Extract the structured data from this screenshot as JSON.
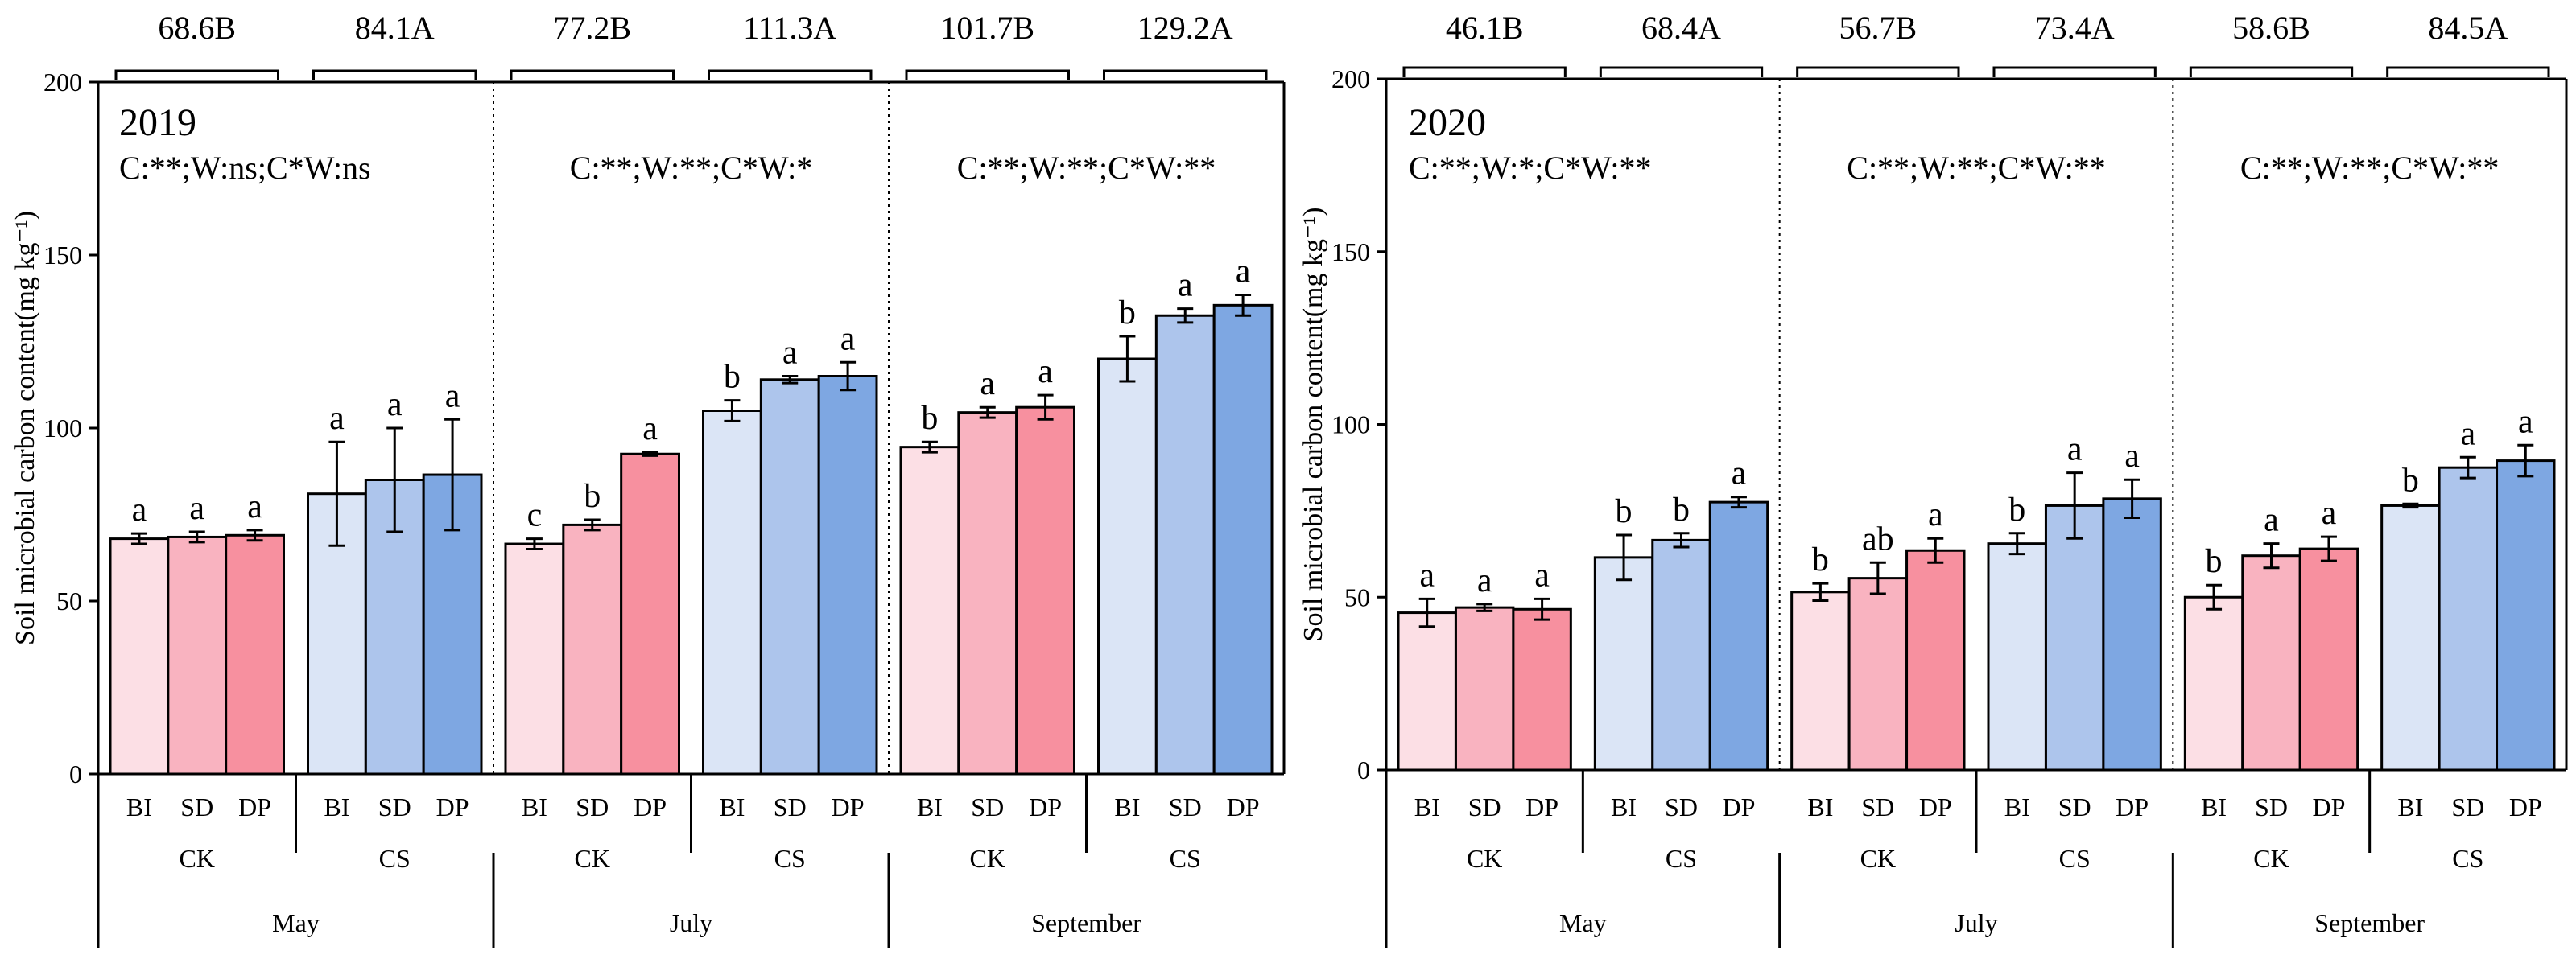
{
  "chart_data": [
    {
      "type": "bar",
      "year_label": "2019",
      "ylabel": "Soil microbial carbon content(mg kg⁻¹)",
      "ylim": [
        0,
        200
      ],
      "yticks": [
        0,
        50,
        100,
        150,
        200
      ],
      "groups": [
        {
          "month": "May",
          "stats": "C:**;W:ns;C*W:ns",
          "subgroups": [
            {
              "name": "CK",
              "mean_label": "68.6B",
              "bars": [
                {
                  "treatment": "BI",
                  "value": 68,
                  "error": 1.5,
                  "letter": "a"
                },
                {
                  "treatment": "SD",
                  "value": 68.5,
                  "error": 1.5,
                  "letter": "a"
                },
                {
                  "treatment": "DP",
                  "value": 69,
                  "error": 1.5,
                  "letter": "a"
                }
              ]
            },
            {
              "name": "CS",
              "mean_label": "84.1A",
              "bars": [
                {
                  "treatment": "BI",
                  "value": 81,
                  "error": 15,
                  "letter": "a"
                },
                {
                  "treatment": "SD",
                  "value": 85,
                  "error": 15,
                  "letter": "a"
                },
                {
                  "treatment": "DP",
                  "value": 86.5,
                  "error": 16,
                  "letter": "a"
                }
              ]
            }
          ]
        },
        {
          "month": "July",
          "stats": "C:**;W:**;C*W:*",
          "subgroups": [
            {
              "name": "CK",
              "mean_label": "77.2B",
              "bars": [
                {
                  "treatment": "BI",
                  "value": 66.5,
                  "error": 1.5,
                  "letter": "c"
                },
                {
                  "treatment": "SD",
                  "value": 72,
                  "error": 1.5,
                  "letter": "b"
                },
                {
                  "treatment": "DP",
                  "value": 92.5,
                  "error": 0.5,
                  "letter": "a"
                }
              ]
            },
            {
              "name": "CS",
              "mean_label": "111.3A",
              "bars": [
                {
                  "treatment": "BI",
                  "value": 105,
                  "error": 3,
                  "letter": "b"
                },
                {
                  "treatment": "SD",
                  "value": 114,
                  "error": 1,
                  "letter": "a"
                },
                {
                  "treatment": "DP",
                  "value": 115,
                  "error": 4,
                  "letter": "a"
                }
              ]
            }
          ]
        },
        {
          "month": "September",
          "stats": "C:**;W:**;C*W:**",
          "subgroups": [
            {
              "name": "CK",
              "mean_label": "101.7B",
              "bars": [
                {
                  "treatment": "BI",
                  "value": 94.5,
                  "error": 1.5,
                  "letter": "b"
                },
                {
                  "treatment": "SD",
                  "value": 104.5,
                  "error": 1.5,
                  "letter": "a"
                },
                {
                  "treatment": "DP",
                  "value": 106,
                  "error": 3.5,
                  "letter": "a"
                }
              ]
            },
            {
              "name": "CS",
              "mean_label": "129.2A",
              "bars": [
                {
                  "treatment": "BI",
                  "value": 120,
                  "error": 6.5,
                  "letter": "b"
                },
                {
                  "treatment": "SD",
                  "value": 132.5,
                  "error": 2,
                  "letter": "a"
                },
                {
                  "treatment": "DP",
                  "value": 135.5,
                  "error": 3,
                  "letter": "a"
                }
              ]
            }
          ]
        }
      ]
    },
    {
      "type": "bar",
      "year_label": "2020",
      "ylabel": "Soil microbial carbon content(mg kg⁻¹)",
      "ylim": [
        0,
        200
      ],
      "yticks": [
        0,
        50,
        100,
        150,
        200
      ],
      "groups": [
        {
          "month": "May",
          "stats": "C:**;W:*;C*W:**",
          "subgroups": [
            {
              "name": "CK",
              "mean_label": "46.1B",
              "bars": [
                {
                  "treatment": "BI",
                  "value": 45.5,
                  "error": 4,
                  "letter": "a"
                },
                {
                  "treatment": "SD",
                  "value": 47,
                  "error": 1,
                  "letter": "a"
                },
                {
                  "treatment": "DP",
                  "value": 46.5,
                  "error": 3,
                  "letter": "a"
                }
              ]
            },
            {
              "name": "CS",
              "mean_label": "68.4A",
              "bars": [
                {
                  "treatment": "BI",
                  "value": 61.5,
                  "error": 6.5,
                  "letter": "b"
                },
                {
                  "treatment": "SD",
                  "value": 66.5,
                  "error": 2,
                  "letter": "b"
                },
                {
                  "treatment": "DP",
                  "value": 77.5,
                  "error": 1.5,
                  "letter": "a"
                }
              ]
            }
          ]
        },
        {
          "month": "July",
          "stats": "C:**;W:**;C*W:**",
          "subgroups": [
            {
              "name": "CK",
              "mean_label": "56.7B",
              "bars": [
                {
                  "treatment": "BI",
                  "value": 51.5,
                  "error": 2.5,
                  "letter": "b"
                },
                {
                  "treatment": "SD",
                  "value": 55.5,
                  "error": 4.5,
                  "letter": "ab"
                },
                {
                  "treatment": "DP",
                  "value": 63.5,
                  "error": 3.5,
                  "letter": "a"
                }
              ]
            },
            {
              "name": "CS",
              "mean_label": "73.4A",
              "bars": [
                {
                  "treatment": "BI",
                  "value": 65.5,
                  "error": 3,
                  "letter": "b"
                },
                {
                  "treatment": "SD",
                  "value": 76.5,
                  "error": 9.5,
                  "letter": "a"
                },
                {
                  "treatment": "DP",
                  "value": 78.5,
                  "error": 5.5,
                  "letter": "a"
                }
              ]
            }
          ]
        },
        {
          "month": "September",
          "stats": "C:**;W:**;C*W:**",
          "subgroups": [
            {
              "name": "CK",
              "mean_label": "58.6B",
              "bars": [
                {
                  "treatment": "BI",
                  "value": 50,
                  "error": 3.5,
                  "letter": "b"
                },
                {
                  "treatment": "SD",
                  "value": 62,
                  "error": 3.5,
                  "letter": "a"
                },
                {
                  "treatment": "DP",
                  "value": 64,
                  "error": 3.5,
                  "letter": "a"
                }
              ]
            },
            {
              "name": "CS",
              "mean_label": "84.5A",
              "bars": [
                {
                  "treatment": "BI",
                  "value": 76.5,
                  "error": 0.5,
                  "letter": "b"
                },
                {
                  "treatment": "SD",
                  "value": 87.5,
                  "error": 3,
                  "letter": "a"
                },
                {
                  "treatment": "DP",
                  "value": 89.5,
                  "error": 4.5,
                  "letter": "a"
                }
              ]
            }
          ]
        }
      ]
    }
  ],
  "colors": {
    "CK": [
      "#fcdfe5",
      "#f9b3c0",
      "#f7909f"
    ],
    "CS": [
      "#dbe5f6",
      "#adc5ec",
      "#7ea7e2"
    ]
  }
}
